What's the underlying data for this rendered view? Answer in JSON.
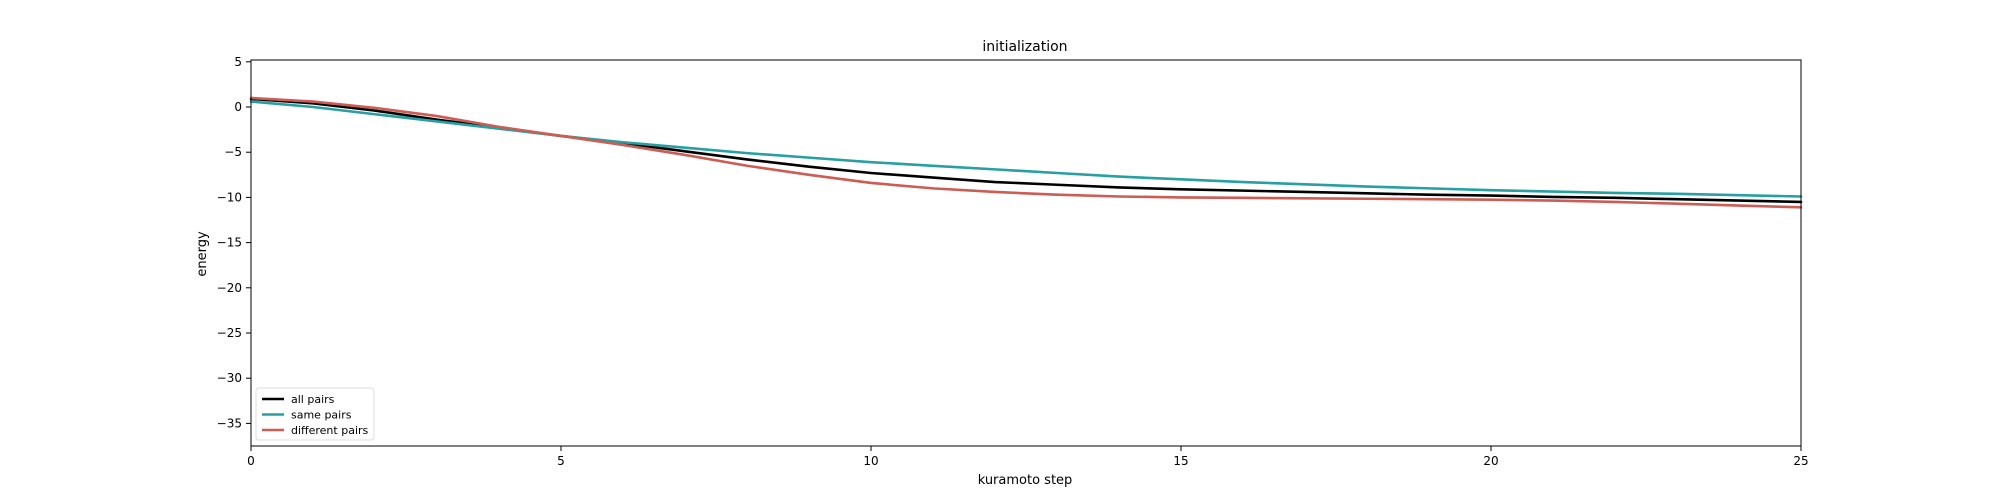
{
  "chart_data": {
    "type": "line",
    "title": "initialization",
    "xlabel": "kuramoto step",
    "ylabel": "energy",
    "xlim": [
      0,
      25
    ],
    "ylim": [
      -37.5,
      5.2
    ],
    "xticks": [
      0,
      5,
      10,
      15,
      20,
      25
    ],
    "yticks": [
      5,
      0,
      -5,
      -10,
      -15,
      -20,
      -25,
      -30,
      -35
    ],
    "xtick_labels": [
      "0",
      "5",
      "10",
      "15",
      "20",
      "25"
    ],
    "ytick_labels": [
      "5",
      "0",
      "−5",
      "−10",
      "−15",
      "−20",
      "−25",
      "−30",
      "−35"
    ],
    "grid": false,
    "legend_position": "lower-left",
    "x": [
      0,
      1,
      2,
      3,
      4,
      5,
      6,
      7,
      8,
      9,
      10,
      11,
      12,
      13,
      14,
      15,
      16,
      17,
      18,
      19,
      20,
      21,
      22,
      23,
      24,
      25
    ],
    "series": [
      {
        "name": "all pairs",
        "color": "#000000",
        "values": [
          0.9,
          0.4,
          -0.4,
          -1.4,
          -2.3,
          -3.2,
          -4.0,
          -4.9,
          -5.8,
          -6.6,
          -7.3,
          -7.8,
          -8.3,
          -8.6,
          -8.9,
          -9.1,
          -9.25,
          -9.4,
          -9.55,
          -9.7,
          -9.8,
          -9.95,
          -10.05,
          -10.2,
          -10.35,
          -10.5
        ]
      },
      {
        "name": "same pairs",
        "color": "#26a0a0",
        "values": [
          0.6,
          0.0,
          -0.8,
          -1.6,
          -2.4,
          -3.2,
          -3.9,
          -4.5,
          -5.1,
          -5.6,
          -6.1,
          -6.5,
          -6.9,
          -7.3,
          -7.7,
          -8.0,
          -8.3,
          -8.55,
          -8.8,
          -9.0,
          -9.2,
          -9.35,
          -9.5,
          -9.6,
          -9.75,
          -9.9
        ]
      },
      {
        "name": "different pairs",
        "color": "#cd5c55",
        "values": [
          1.0,
          0.6,
          -0.1,
          -1.0,
          -2.2,
          -3.2,
          -4.2,
          -5.3,
          -6.5,
          -7.5,
          -8.4,
          -9.0,
          -9.4,
          -9.7,
          -9.9,
          -10.0,
          -10.05,
          -10.1,
          -10.15,
          -10.2,
          -10.25,
          -10.35,
          -10.5,
          -10.7,
          -10.9,
          -11.1
        ]
      }
    ]
  }
}
